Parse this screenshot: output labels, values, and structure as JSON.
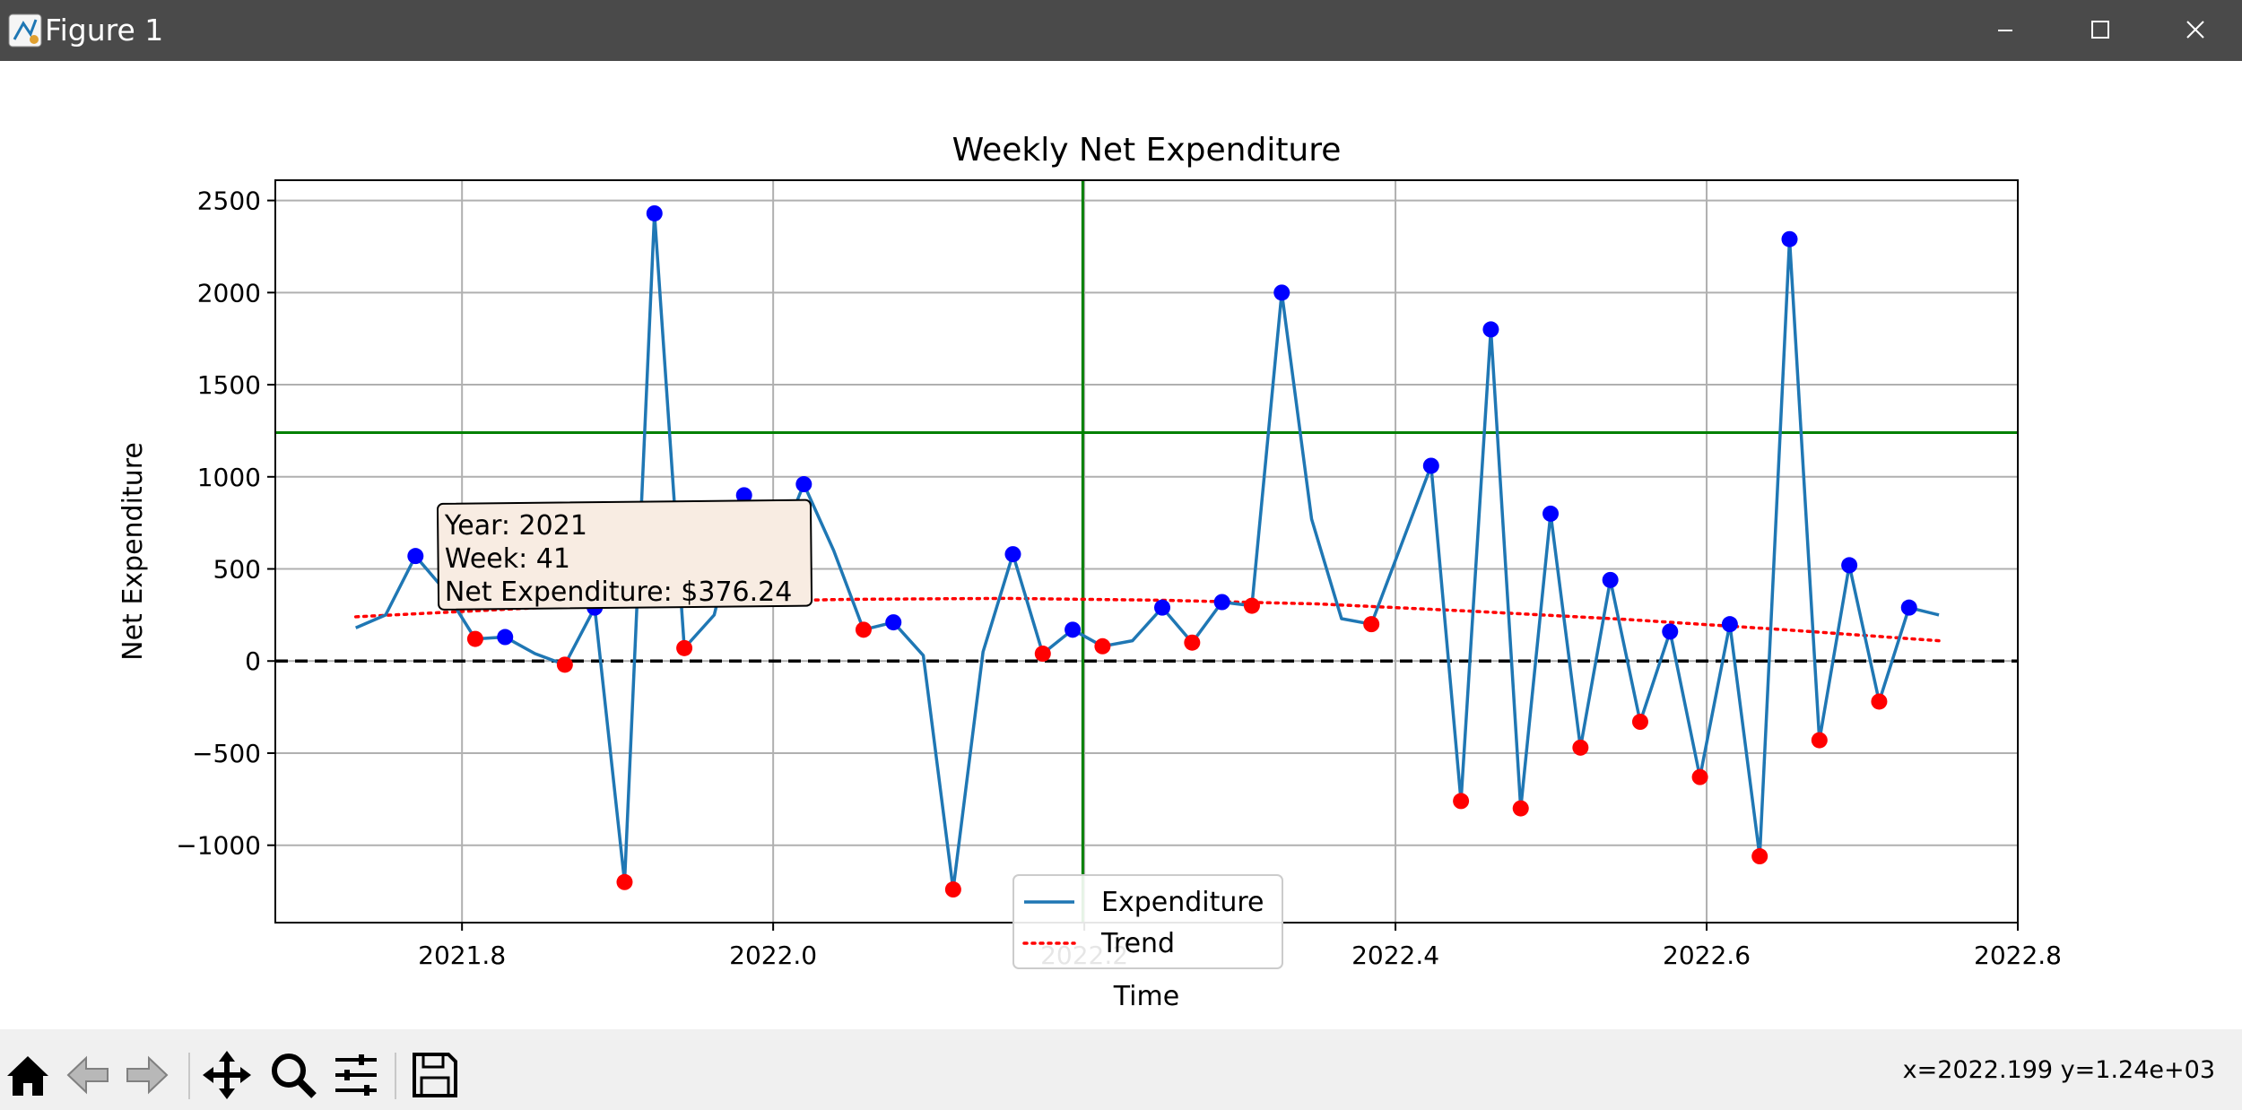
{
  "window": {
    "title": "Figure 1",
    "controls": {
      "minimize_icon": "minimize-icon",
      "maximize_icon": "maximize-icon",
      "close_icon": "close-icon"
    }
  },
  "toolbar": {
    "buttons": [
      {
        "name": "home-icon"
      },
      {
        "name": "back-arrow-icon"
      },
      {
        "name": "forward-arrow-icon"
      },
      {
        "name": "pan-move-icon"
      },
      {
        "name": "zoom-magnifier-icon"
      },
      {
        "name": "configure-subplots-icon"
      },
      {
        "name": "save-disk-icon"
      }
    ],
    "coordinates": "x=2022.199 y=1.24e+03"
  },
  "chart_data": {
    "type": "line",
    "title": "Weekly Net Expenditure",
    "xlabel": "Time",
    "ylabel": "Net Expenditure",
    "xlim": [
      2021.68,
      2022.8
    ],
    "ylim": [
      -1420,
      2610
    ],
    "xticks": [
      2021.8,
      2022.0,
      2022.2,
      2022.4,
      2022.6,
      2022.8
    ],
    "xtick_labels": [
      "2021.8",
      "2022.0",
      "2022.2",
      "2022.4",
      "2022.6",
      "2022.8"
    ],
    "yticks": [
      2500,
      2000,
      1500,
      1000,
      500,
      0,
      -500,
      -1000
    ],
    "ytick_labels": [
      "2500",
      "2000",
      "1500",
      "1000",
      "500",
      "0",
      "−500",
      "−1000"
    ],
    "grid": true,
    "legend_position": "lower-center",
    "colors": {
      "line": "#1f77b4",
      "trend": "#ff0000",
      "above": "#0000ff",
      "below": "#ff0000",
      "crosshair": "#008000",
      "zero": "#000000"
    },
    "series": [
      {
        "name": "Expenditure",
        "x": [
          2021.7317,
          2021.7509,
          2021.7701,
          2021.7893,
          2021.8085,
          2021.8277,
          2021.8469,
          2021.8661,
          2021.8853,
          2021.9045,
          2021.9237,
          2021.9429,
          2021.9621,
          2021.9813,
          2022.0005,
          2022.0197,
          2022.0389,
          2022.0581,
          2022.0773,
          2022.0965,
          2022.1157,
          2022.1349,
          2022.1541,
          2022.1733,
          2022.1925,
          2022.2117,
          2022.2309,
          2022.2501,
          2022.2693,
          2022.2885,
          2022.3077,
          2022.3269,
          2022.3461,
          2022.3653,
          2022.3845,
          2022.4037,
          2022.4229,
          2022.4421,
          2022.4613,
          2022.4805,
          2022.4997,
          2022.5189,
          2022.5381,
          2022.5573,
          2022.5765,
          2022.5957,
          2022.6149,
          2022.6341,
          2022.6533,
          2022.6725,
          2022.6917,
          2022.7109,
          2022.7301,
          2022.7493
        ],
        "values": [
          180,
          250,
          570,
          380,
          120,
          130,
          40,
          -20,
          290,
          -1200,
          2430,
          70,
          250,
          900,
          560,
          960,
          600,
          170,
          210,
          30,
          -1240,
          50,
          580,
          40,
          170,
          80,
          110,
          290,
          100,
          320,
          300,
          2000,
          770,
          230,
          200,
          630,
          1060,
          -760,
          1800,
          -800,
          800,
          -470,
          440,
          -330,
          160,
          -630,
          200,
          -1060,
          2290,
          -430,
          520,
          -220,
          290,
          250
        ]
      },
      {
        "name": "Trend",
        "style": "dotted",
        "x": [
          2021.7317,
          2021.85,
          2021.95,
          2022.05,
          2022.15,
          2022.25,
          2022.35,
          2022.45,
          2022.55,
          2022.65,
          2022.7493
        ],
        "values": [
          240,
          290,
          320,
          335,
          340,
          330,
          310,
          270,
          225,
          170,
          110
        ]
      }
    ],
    "zero_line": 0,
    "crosshair": {
      "x": 2022.199,
      "y": 1240
    },
    "annotation": {
      "anchor_x": 2021.8085,
      "anchor_y": 376.24,
      "lines": [
        "Year: 2021",
        "Week: 41",
        "Net Expenditure: $376.24"
      ]
    }
  }
}
